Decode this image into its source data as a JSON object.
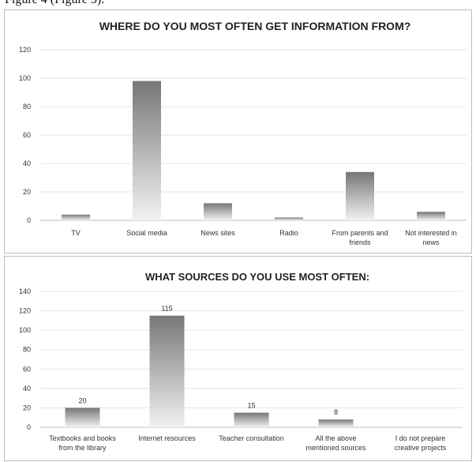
{
  "caption_fragment": "Figure 4 (Figure 5).",
  "chart_data": [
    {
      "type": "bar",
      "title": "WHERE DO YOU MOST OFTEN GET INFORMATION FROM?",
      "categories": [
        [
          "TV"
        ],
        [
          "Social media"
        ],
        [
          "News sites"
        ],
        [
          "Radio"
        ],
        [
          "From parents and",
          "friends"
        ],
        [
          "Not interested in",
          "news"
        ]
      ],
      "values": [
        4,
        98,
        12,
        2,
        34,
        6
      ],
      "ylim": [
        0,
        120
      ],
      "yticks": [
        0,
        20,
        40,
        60,
        80,
        100,
        120
      ],
      "grid": true,
      "data_labels": false,
      "bar_color_top": "#777777",
      "bar_color_bottom": "#f2f2f2"
    },
    {
      "type": "bar",
      "title": "WHAT SOURCES DO YOU USE MOST OFTEN:",
      "categories": [
        [
          "Textbooks and books",
          "from the library"
        ],
        [
          "Internet resources"
        ],
        [
          "Teacher consultation"
        ],
        [
          "All the above",
          "mentioned sources"
        ],
        [
          "I do not prepare",
          "creative projects"
        ]
      ],
      "values": [
        20,
        115,
        15,
        8,
        0
      ],
      "ylim": [
        0,
        140
      ],
      "yticks": [
        0,
        20,
        40,
        60,
        80,
        100,
        120,
        140
      ],
      "grid": true,
      "data_labels": true,
      "bar_color_top": "#777777",
      "bar_color_bottom": "#f2f2f2"
    }
  ]
}
